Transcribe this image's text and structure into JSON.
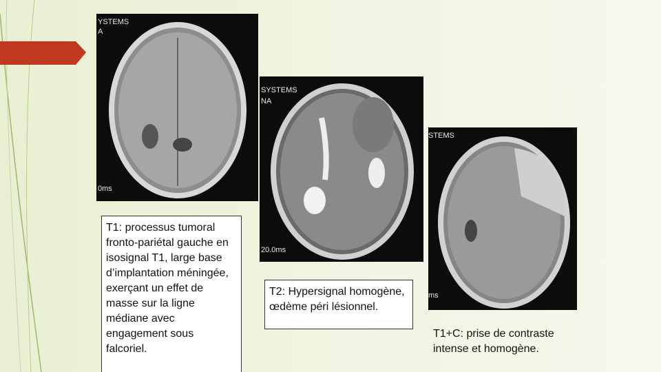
{
  "slide": {
    "images": [
      {
        "overlay": [
          "YSTEMS",
          "A",
          "0ms"
        ]
      },
      {
        "overlay": [
          "SYSTEMS",
          "NA",
          "20.0ms"
        ]
      },
      {
        "overlay": [
          "STEMS",
          "ms"
        ]
      }
    ],
    "captions": [
      "T1: processus tumoral fronto-pariétal gauche en isosignal T1, large base d’implantation méningée, exerçant un effet de masse sur la ligne médiane avec engagement sous falcoriel.",
      "T2: Hypersignal homogène, œdème péri lésionnel.",
      "T1+C: prise de contraste intense et homogène."
    ]
  }
}
